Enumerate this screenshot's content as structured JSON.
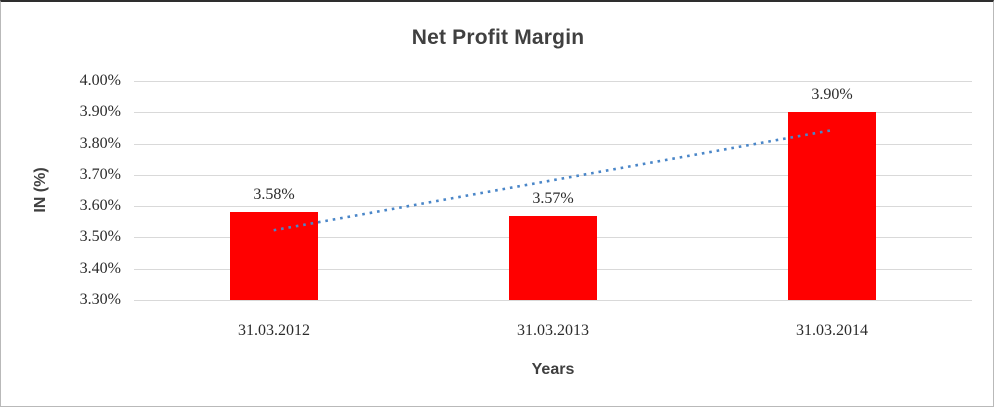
{
  "chart_data": {
    "type": "bar",
    "title": "Net Profit Margin",
    "xlabel": "Years",
    "ylabel": "IN (%)",
    "categories": [
      "31.03.2012",
      "31.03.2013",
      "31.03.2014"
    ],
    "values": [
      3.58,
      3.57,
      3.9
    ],
    "data_labels": [
      "3.58%",
      "3.57%",
      "3.90%"
    ],
    "ylim": [
      3.3,
      4.0
    ],
    "ytick_step": 0.1,
    "yticks": [
      "4.00%",
      "3.90%",
      "3.80%",
      "3.70%",
      "3.60%",
      "3.50%",
      "3.40%",
      "3.30%"
    ],
    "grid": true,
    "legend_position": "none",
    "series_name": "Net Profit Margin",
    "trendline": {
      "style": "dotted",
      "type": "linear",
      "start_value": 3.523,
      "end_value": 3.843
    },
    "colors": {
      "bar": "#FF0000",
      "trendline": "#4A86C8",
      "gridline": "#D9D9D9",
      "title_text": "#404040",
      "axis_title_text": "#3F3F3F",
      "tick_text": "#2B2B2B"
    }
  }
}
